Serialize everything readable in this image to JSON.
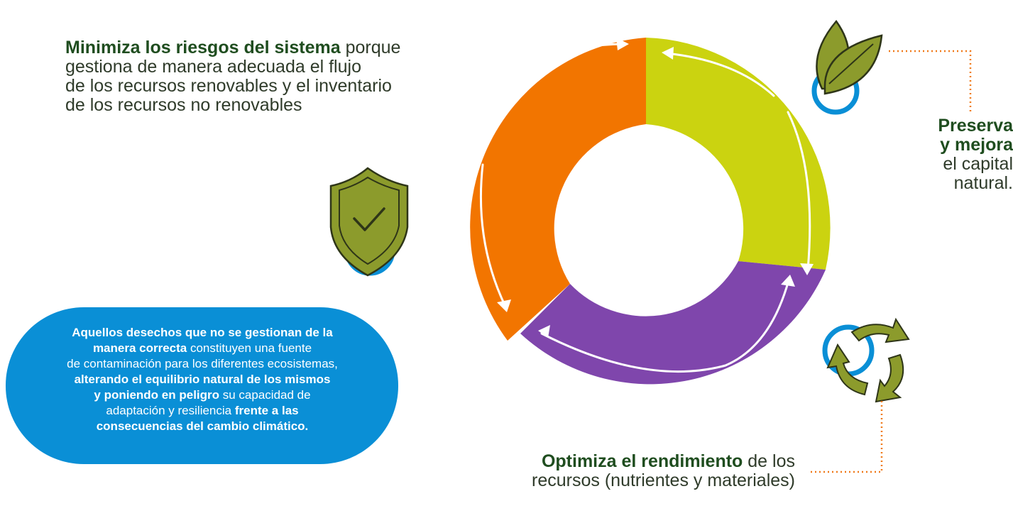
{
  "texts": {
    "top_left": {
      "bold": "Minimiza los riesgos del sistema",
      "l1": " porque",
      "l2": "gestiona de manera adecuada el flujo",
      "l3": "de los recursos renovables y el inventario",
      "l4": "de los recursos no renovables"
    },
    "right": {
      "b1": "Preserva",
      "b2": "y mejora",
      "l3": "el capital",
      "l4": "natural."
    },
    "bottom": {
      "bold": "Optimiza el rendimiento",
      "l1": " de los",
      "l2": "recursos (nutrientes y materiales)"
    },
    "blue": {
      "l1_bold": "Aquellos desechos que no se gestionan de la",
      "l2_bold": "manera correcta",
      "l2": " constituyen una fuente",
      "l3": "de contaminación para los diferentes ecosistemas,",
      "l4_bold": "alterando el equilibrio natural de los mismos",
      "l5_bold": "y poniendo en peligro",
      "l5": " su capacidad de",
      "l6": "adaptación y resiliencia ",
      "l6_bold": "frente a las",
      "l7_bold": "consecuencias del cambio climático."
    }
  },
  "colors": {
    "orange": "#f27500",
    "lime": "#cbd310",
    "purple": "#7f46ac",
    "olive": "#8c9b2c",
    "olive_dark": "#2e3518",
    "blue": "#0a8fd6",
    "dotted": "#f07a1a"
  },
  "icons": [
    "leaf-icon",
    "shield-check-icon",
    "recycle-icon"
  ]
}
